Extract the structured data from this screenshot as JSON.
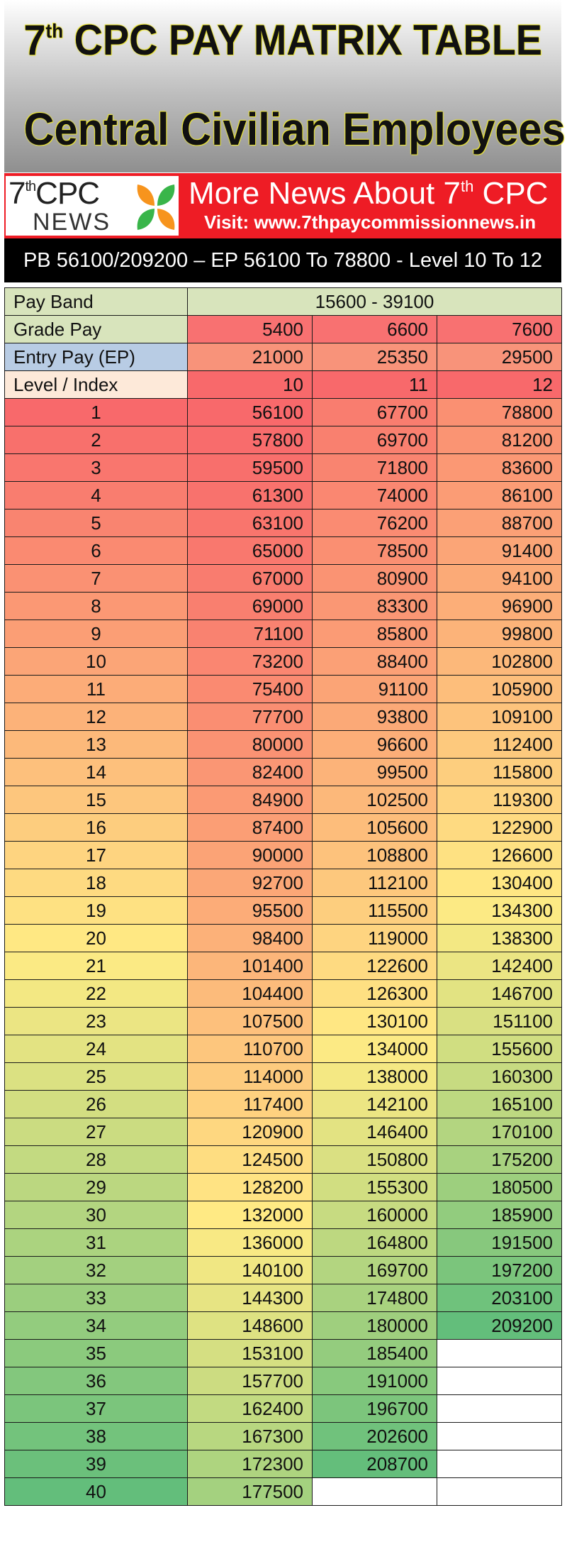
{
  "header": {
    "title_main": "7",
    "title_sup": "th",
    "title_rest": " CPC PAY MATRIX TABLE",
    "title_line2": "Central Civilian Employees"
  },
  "banner": {
    "logo_top": "7",
    "logo_sup": "th",
    "logo_top_rest": "CPC",
    "logo_bottom": "NEWS",
    "headline": "More News About 7",
    "headline_sup": "th",
    "headline_rest": " CPC",
    "visit": "Visit: www.7thpaycommissionnews.in",
    "bg_color": "#ee1c25"
  },
  "subtitle": "PB 56100/209200 – EP 56100 To 78800 - Level 10 To 12",
  "table": {
    "pay_band_label": "Pay Band",
    "pay_band_value": "15600 - 39100",
    "grade_pay_label": "Grade Pay",
    "grade_pay": [
      "5400",
      "6600",
      "7600"
    ],
    "entry_pay_label": "Entry Pay (EP)",
    "entry_pay": [
      "21000",
      "25350",
      "29500"
    ],
    "level_label": "Level / Index",
    "levels": [
      "10",
      "11",
      "12"
    ],
    "rows": [
      [
        "1",
        "56100",
        "67700",
        "78800"
      ],
      [
        "2",
        "57800",
        "69700",
        "81200"
      ],
      [
        "3",
        "59500",
        "71800",
        "83600"
      ],
      [
        "4",
        "61300",
        "74000",
        "86100"
      ],
      [
        "5",
        "63100",
        "76200",
        "88700"
      ],
      [
        "6",
        "65000",
        "78500",
        "91400"
      ],
      [
        "7",
        "67000",
        "80900",
        "94100"
      ],
      [
        "8",
        "69000",
        "83300",
        "96900"
      ],
      [
        "9",
        "71100",
        "85800",
        "99800"
      ],
      [
        "10",
        "73200",
        "88400",
        "102800"
      ],
      [
        "11",
        "75400",
        "91100",
        "105900"
      ],
      [
        "12",
        "77700",
        "93800",
        "109100"
      ],
      [
        "13",
        "80000",
        "96600",
        "112400"
      ],
      [
        "14",
        "82400",
        "99500",
        "115800"
      ],
      [
        "15",
        "84900",
        "102500",
        "119300"
      ],
      [
        "16",
        "87400",
        "105600",
        "122900"
      ],
      [
        "17",
        "90000",
        "108800",
        "126600"
      ],
      [
        "18",
        "92700",
        "112100",
        "130400"
      ],
      [
        "19",
        "95500",
        "115500",
        "134300"
      ],
      [
        "20",
        "98400",
        "119000",
        "138300"
      ],
      [
        "21",
        "101400",
        "122600",
        "142400"
      ],
      [
        "22",
        "104400",
        "126300",
        "146700"
      ],
      [
        "23",
        "107500",
        "130100",
        "151100"
      ],
      [
        "24",
        "110700",
        "134000",
        "155600"
      ],
      [
        "25",
        "114000",
        "138000",
        "160300"
      ],
      [
        "26",
        "117400",
        "142100",
        "165100"
      ],
      [
        "27",
        "120900",
        "146400",
        "170100"
      ],
      [
        "28",
        "124500",
        "150800",
        "175200"
      ],
      [
        "29",
        "128200",
        "155300",
        "180500"
      ],
      [
        "30",
        "132000",
        "160000",
        "185900"
      ],
      [
        "31",
        "136000",
        "164800",
        "191500"
      ],
      [
        "32",
        "140100",
        "169700",
        "197200"
      ],
      [
        "33",
        "144300",
        "174800",
        "203100"
      ],
      [
        "34",
        "148600",
        "180000",
        "209200"
      ],
      [
        "35",
        "153100",
        "185400",
        ""
      ],
      [
        "36",
        "157700",
        "191000",
        ""
      ],
      [
        "37",
        "162400",
        "196700",
        ""
      ],
      [
        "38",
        "167300",
        "202600",
        ""
      ],
      [
        "39",
        "172300",
        "208700",
        ""
      ],
      [
        "40",
        "177500",
        "",
        ""
      ]
    ],
    "colors": {
      "pay_band_bg": "#d8e4bc",
      "grade_pay_label_bg": "#d8e4bc",
      "entry_pay_label_bg": "#b8cce4",
      "level_label_bg": "#fde9d9",
      "grade_pay_bg": "#f87171",
      "entry_pay_bg": "#f8937a",
      "level_bg": "#f8696b",
      "scale_red": "#f8696b",
      "scale_yellow": "#ffeb84",
      "scale_green": "#63be7b"
    }
  }
}
